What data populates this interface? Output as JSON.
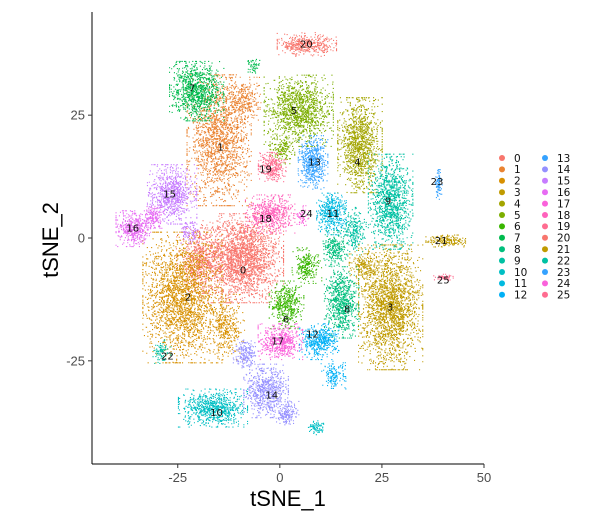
{
  "chart_data": {
    "type": "scatter",
    "title": "",
    "xlabel": "tSNE_1",
    "ylabel": "tSNE_2",
    "xlim": [
      -46,
      50
    ],
    "ylim": [
      -46,
      46
    ],
    "x_ticks": [
      -25,
      0,
      25,
      50
    ],
    "y_ticks": [
      -25,
      0,
      25
    ],
    "x_tick_labels": [
      "-25",
      "0",
      "25",
      "50"
    ],
    "y_tick_labels": [
      "-25",
      "0",
      "25"
    ],
    "grid": false,
    "legend_position": "right",
    "series": [
      {
        "name": "0",
        "color": "#F8766D",
        "label_pos": [
          -9.0,
          -6.5
        ],
        "blobs": [
          [
            -9.5,
            -4.0,
            8.5,
            7.5,
            2400
          ],
          [
            -20.0,
            -4.5,
            4.5,
            5.5,
            500
          ]
        ]
      },
      {
        "name": "1",
        "color": "#EA8331",
        "label_pos": [
          -14.5,
          18.5
        ],
        "blobs": [
          [
            -15.0,
            20.0,
            6.5,
            11.0,
            1700
          ],
          [
            -9.0,
            28.0,
            3.5,
            4.0,
            300
          ]
        ]
      },
      {
        "name": "2",
        "color": "#D89000",
        "label_pos": [
          -22.5,
          -12.0
        ],
        "blobs": [
          [
            -24.0,
            -12.0,
            8.0,
            11.0,
            2300
          ],
          [
            -13.0,
            -18.0,
            3.5,
            5.5,
            350
          ]
        ]
      },
      {
        "name": "3",
        "color": "#C09B00",
        "label_pos": [
          27.0,
          -14.0
        ],
        "blobs": [
          [
            27.0,
            -14.0,
            6.5,
            10.5,
            2200
          ],
          [
            20.5,
            -5.5,
            3.0,
            3.0,
            200
          ]
        ]
      },
      {
        "name": "4",
        "color": "#A3A500",
        "label_pos": [
          19.0,
          15.5
        ],
        "blobs": [
          [
            19.5,
            19.0,
            4.5,
            8.0,
            1200
          ]
        ]
      },
      {
        "name": "5",
        "color": "#7CAE00",
        "label_pos": [
          3.5,
          26.0
        ],
        "blobs": [
          [
            4.5,
            26.0,
            7.0,
            6.0,
            1300
          ],
          [
            0.5,
            18.0,
            2.5,
            2.5,
            150
          ]
        ]
      },
      {
        "name": "6",
        "color": "#39B600",
        "label_pos": [
          1.5,
          -16.5
        ],
        "blobs": [
          [
            1.5,
            -13.5,
            3.5,
            4.0,
            450
          ],
          [
            6.5,
            -5.5,
            3.0,
            3.0,
            250
          ]
        ]
      },
      {
        "name": "7",
        "color": "#00BB4E",
        "label_pos": [
          -21.5,
          30.5
        ],
        "blobs": [
          [
            -20.5,
            30.0,
            5.5,
            5.0,
            1000
          ],
          [
            -6.5,
            35.0,
            1.2,
            1.2,
            50
          ]
        ]
      },
      {
        "name": "8",
        "color": "#00BF7D",
        "label_pos": [
          16.5,
          -14.5
        ],
        "blobs": [
          [
            15.0,
            -13.0,
            3.5,
            6.0,
            750
          ],
          [
            13.5,
            -2.0,
            2.5,
            3.0,
            250
          ]
        ]
      },
      {
        "name": "9",
        "color": "#00C1A3",
        "label_pos": [
          26.5,
          7.5
        ],
        "blobs": [
          [
            27.0,
            7.5,
            4.5,
            8.0,
            1200
          ],
          [
            18.0,
            1.5,
            2.5,
            4.0,
            250
          ]
        ]
      },
      {
        "name": "10",
        "color": "#00BFC4",
        "label_pos": [
          -15.5,
          -35.5
        ],
        "blobs": [
          [
            -16.5,
            -34.5,
            7.0,
            3.2,
            800
          ],
          [
            9.0,
            -38.5,
            1.8,
            1.2,
            80
          ]
        ]
      },
      {
        "name": "11",
        "color": "#00BAE0",
        "label_pos": [
          13.0,
          5.0
        ],
        "blobs": [
          [
            12.5,
            5.0,
            3.0,
            3.5,
            450
          ]
        ]
      },
      {
        "name": "12",
        "color": "#00B0F6",
        "label_pos": [
          8.0,
          -19.5
        ],
        "blobs": [
          [
            9.5,
            -21.0,
            4.0,
            3.0,
            450
          ],
          [
            13.0,
            -28.0,
            2.5,
            2.5,
            150
          ]
        ]
      },
      {
        "name": "13",
        "color": "#35A2FF",
        "label_pos": [
          8.5,
          15.5
        ],
        "blobs": [
          [
            8.0,
            15.5,
            3.0,
            4.5,
            550
          ]
        ]
      },
      {
        "name": "14",
        "color": "#9590FF",
        "label_pos": [
          -2.0,
          -32.0
        ],
        "blobs": [
          [
            -3.5,
            -31.0,
            4.5,
            4.5,
            650
          ],
          [
            -8.5,
            -23.5,
            2.5,
            2.5,
            200
          ],
          [
            1.5,
            -35.5,
            2.5,
            2.0,
            150
          ]
        ]
      },
      {
        "name": "15",
        "color": "#C77CFF",
        "label_pos": [
          -27.0,
          9.0
        ],
        "blobs": [
          [
            -26.5,
            9.0,
            5.0,
            5.0,
            800
          ],
          [
            -22.0,
            1.5,
            2.0,
            2.0,
            100
          ]
        ]
      },
      {
        "name": "16",
        "color": "#E76BF3",
        "label_pos": [
          -36.0,
          2.0
        ],
        "blobs": [
          [
            -36.0,
            2.0,
            3.5,
            3.0,
            450
          ],
          [
            -31.0,
            4.5,
            2.0,
            2.0,
            150
          ]
        ]
      },
      {
        "name": "17",
        "color": "#FA62DB",
        "label_pos": [
          -0.5,
          -21.0
        ],
        "blobs": [
          [
            0.0,
            -21.0,
            4.5,
            3.0,
            550
          ]
        ]
      },
      {
        "name": "18",
        "color": "#FF62BC",
        "label_pos": [
          -3.5,
          4.0
        ],
        "blobs": [
          [
            -2.5,
            5.0,
            5.0,
            3.2,
            600
          ]
        ]
      },
      {
        "name": "19",
        "color": "#FF6C90",
        "label_pos": [
          -3.5,
          14.0
        ],
        "blobs": [
          [
            -2.0,
            14.5,
            2.8,
            2.5,
            300
          ]
        ]
      },
      {
        "name": "20",
        "color": "#F8766D",
        "label_pos": [
          6.5,
          39.5
        ],
        "blobs": [
          [
            6.5,
            39.5,
            6.0,
            2.0,
            450
          ]
        ]
      },
      {
        "name": "21",
        "color": "#C09B00",
        "label_pos": [
          39.5,
          -0.5
        ],
        "blobs": [
          [
            40.5,
            -0.5,
            4.0,
            1.0,
            180
          ]
        ]
      },
      {
        "name": "22",
        "color": "#00C1A3",
        "label_pos": [
          -27.5,
          -24.0
        ],
        "blobs": [
          [
            -29.0,
            -23.0,
            1.8,
            2.0,
            90
          ]
        ]
      },
      {
        "name": "23",
        "color": "#35A2FF",
        "label_pos": [
          38.5,
          11.5
        ],
        "blobs": [
          [
            38.8,
            11.0,
            0.7,
            2.5,
            90
          ]
        ]
      },
      {
        "name": "24",
        "color": "#FA62DB",
        "label_pos": [
          6.5,
          5.0
        ],
        "blobs": [
          [
            5.5,
            4.5,
            1.2,
            1.8,
            60
          ]
        ]
      },
      {
        "name": "25",
        "color": "#FF6C90",
        "label_pos": [
          40.0,
          -8.5
        ],
        "blobs": [
          [
            40.0,
            -8.0,
            2.2,
            0.6,
            50
          ]
        ]
      }
    ]
  }
}
